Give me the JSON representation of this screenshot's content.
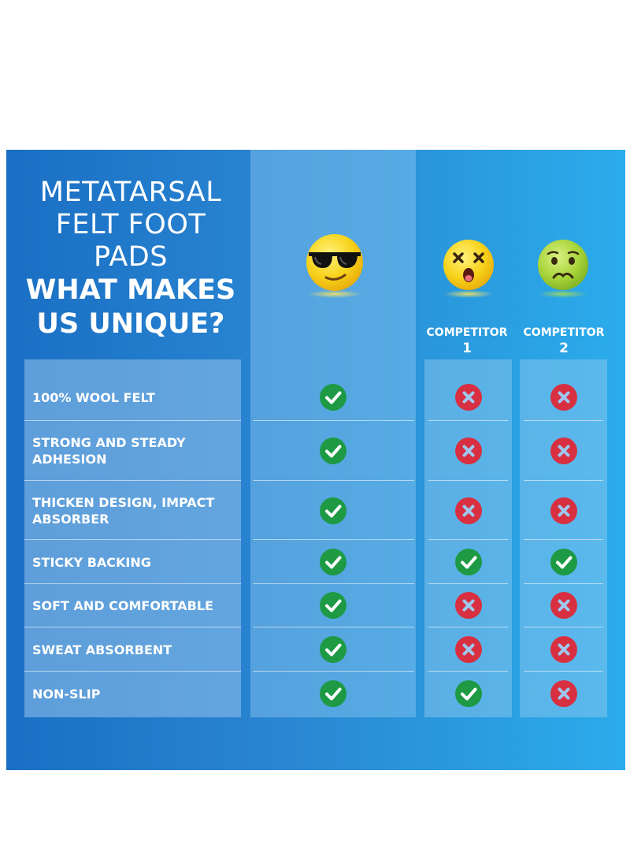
{
  "headline": {
    "line1": "METATARSAL",
    "line2": "FELT FOOT",
    "line3": "PADS",
    "line4": "WHAT MAKES",
    "line5": "US UNIQUE?"
  },
  "columns": {
    "ours": {
      "emoji": "sunglasses-face"
    },
    "competitor1": {
      "label_line1": "COMPETITOR",
      "label_line2": "1",
      "emoji": "dizzy-face"
    },
    "competitor2": {
      "label_line1": "COMPETITOR",
      "label_line2": "2",
      "emoji": "nauseated-face"
    }
  },
  "rows": [
    {
      "feature": "100% WOOL FELT",
      "ours": "check",
      "competitor1": "cross",
      "competitor2": "cross"
    },
    {
      "feature": "STRONG AND STEADY ADHESION",
      "ours": "check",
      "competitor1": "cross",
      "competitor2": "cross"
    },
    {
      "feature": "THICKEN DESIGN, IMPACT ABSORBER",
      "ours": "check",
      "competitor1": "cross",
      "competitor2": "cross"
    },
    {
      "feature": "STICKY BACKING",
      "ours": "check",
      "competitor1": "check",
      "competitor2": "check"
    },
    {
      "feature": "SOFT AND COMFORTABLE",
      "ours": "check",
      "competitor1": "cross",
      "competitor2": "cross"
    },
    {
      "feature": "SWEAT ABSORBENT",
      "ours": "check",
      "competitor1": "cross",
      "competitor2": "cross"
    },
    {
      "feature": "NON-SLIP",
      "ours": "check",
      "competitor1": "check",
      "competitor2": "cross"
    }
  ],
  "colors": {
    "check": "#1e9a45",
    "cross": "#d83040",
    "panel_left": "#1a6fc4",
    "panel_right": "#2bacec"
  }
}
